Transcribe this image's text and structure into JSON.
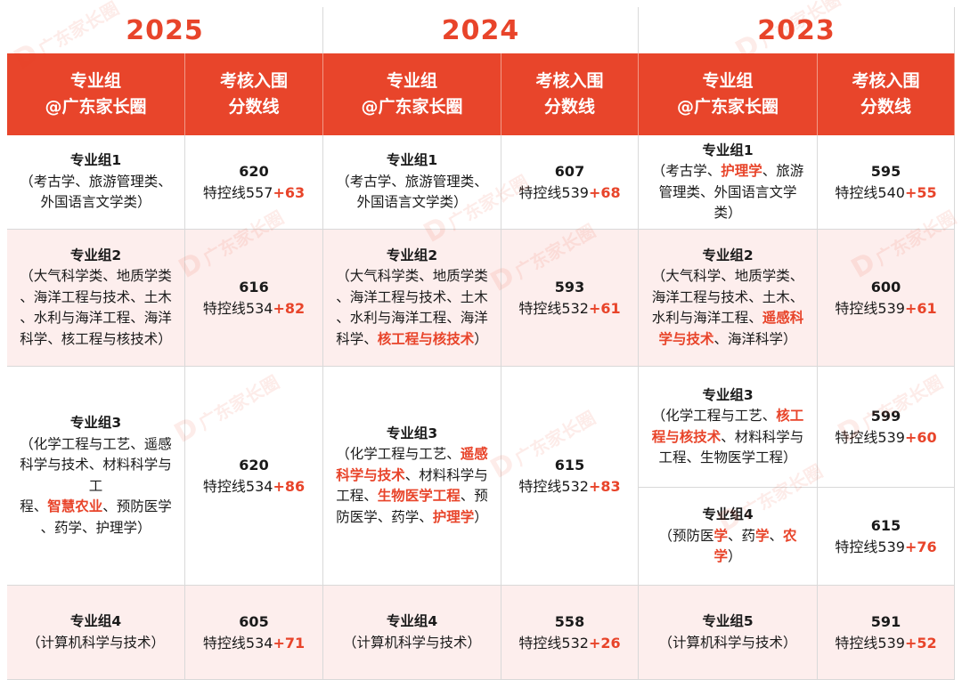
{
  "years": [
    "2025",
    "2024",
    "2023"
  ],
  "header": {
    "group_line1": "专业组",
    "group_line2": "@广东家长圈",
    "score_line1": "考核入围",
    "score_line2": "分数线"
  },
  "watermark": "广东家长圈",
  "accent_color": "#e8442a",
  "y2025": {
    "groups": [
      {
        "name": "专业组1",
        "subjects": [
          "（考古学、旅游管理类、",
          "外国语言文学类）"
        ],
        "score": "620",
        "line": "特控线557",
        "plus": "+63"
      },
      {
        "name": "专业组2",
        "subjects": [
          "（大气科学类、地质学类",
          "、海洋工程与技术、土木",
          "、水利与海洋工程、海洋",
          "科学、核工程与核技术）"
        ],
        "score": "616",
        "line": "特控线534",
        "plus": "+82"
      },
      {
        "name": "专业组3",
        "subjects": [
          "（化学工程与工艺、遥感",
          "科学与技术、材料科学与工",
          "程、智慧农业、预防医学",
          "、药学、护理学）"
        ],
        "highlights": [
          "智慧农业"
        ],
        "score": "620",
        "line": "特控线534",
        "plus": "+86"
      },
      {
        "name": "专业组4",
        "subjects": [
          "（计算机科学与技术）"
        ],
        "score": "605",
        "line": "特控线534",
        "plus": "+71"
      }
    ]
  },
  "y2024": {
    "groups": [
      {
        "name": "专业组1",
        "subjects": [
          "（考古学、旅游管理类、",
          "外国语言文学类）"
        ],
        "score": "607",
        "line": "特控线539",
        "plus": "+68"
      },
      {
        "name": "专业组2",
        "subjects": [
          "（大气科学类、地质学类",
          "、海洋工程与技术、土木",
          "、水利与海洋工程、海洋",
          "科学、核工程与核技术）"
        ],
        "highlights": [
          "核工程与核技术"
        ],
        "score": "593",
        "line": "特控线532",
        "plus": "+61"
      },
      {
        "name": "专业组3",
        "subjects": [
          "（化学工程与工艺、遥感",
          "科学与技术、材料科学与",
          "工程、生物医学工程、预",
          "防医学、药学、护理学）"
        ],
        "highlights": [
          "遥感",
          "科学与技术",
          "生物医学工程",
          "护理学"
        ],
        "score": "615",
        "line": "特控线532",
        "plus": "+83"
      },
      {
        "name": "专业组4",
        "subjects": [
          "（计算机科学与技术）"
        ],
        "score": "558",
        "line": "特控线532",
        "plus": "+26"
      }
    ]
  },
  "y2023": {
    "groups": [
      {
        "name": "专业组1",
        "subjects": [
          "（考古学、护理学、旅游",
          "管理类、外国语言文学",
          "类）"
        ],
        "highlights": [
          "护理学"
        ],
        "score": "595",
        "line": "特控线540",
        "plus": "+55"
      },
      {
        "name": "专业组2",
        "subjects": [
          "（大气科学、地质学类、",
          "海洋工程与技术、土木、",
          "水利与海洋工程、遥感科",
          "学与技术、海洋科学）"
        ],
        "highlights": [
          "遥感科",
          "学与技术"
        ],
        "score": "600",
        "line": "特控线539",
        "plus": "+61"
      },
      {
        "name": "专业组3",
        "subjects": [
          "（化学工程与工艺、核工",
          "程与核技术、材料科学与",
          "工程、生物医学工程）"
        ],
        "highlights": [
          "核工",
          "程与核技术"
        ],
        "score": "599",
        "line": "特控线539",
        "plus": "+60"
      },
      {
        "name": "专业组4",
        "subjects": [
          "（预防医学、药学、农",
          "学）"
        ],
        "highlights": [
          "农",
          "学"
        ],
        "score": "615",
        "line": "特控线539",
        "plus": "+76"
      },
      {
        "name": "专业组5",
        "subjects": [
          "（计算机科学与技术）"
        ],
        "score": "591",
        "line": "特控线539",
        "plus": "+52"
      }
    ]
  }
}
